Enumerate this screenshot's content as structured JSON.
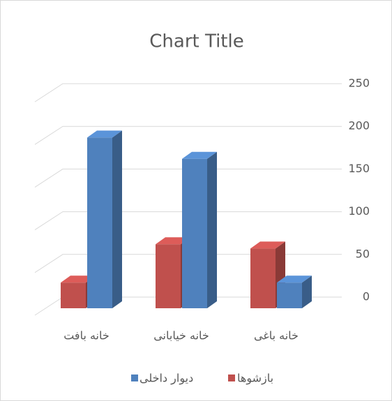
{
  "chart_data": {
    "type": "bar3d",
    "title": "Chart Title",
    "categories": [
      "خانه بافت",
      "خانه خیابانی",
      "خانه باغی"
    ],
    "series": [
      {
        "name": "بازشوها",
        "color": "#c0504d",
        "values": [
          30,
          75,
          70
        ]
      },
      {
        "name": "دیوار داخلی",
        "color": "#4f81bd",
        "values": [
          200,
          175,
          30
        ]
      }
    ],
    "ylim": [
      0,
      250
    ],
    "yticks": [
      0,
      50,
      100,
      150,
      200,
      250
    ],
    "grid": true,
    "legend": "bottom"
  }
}
